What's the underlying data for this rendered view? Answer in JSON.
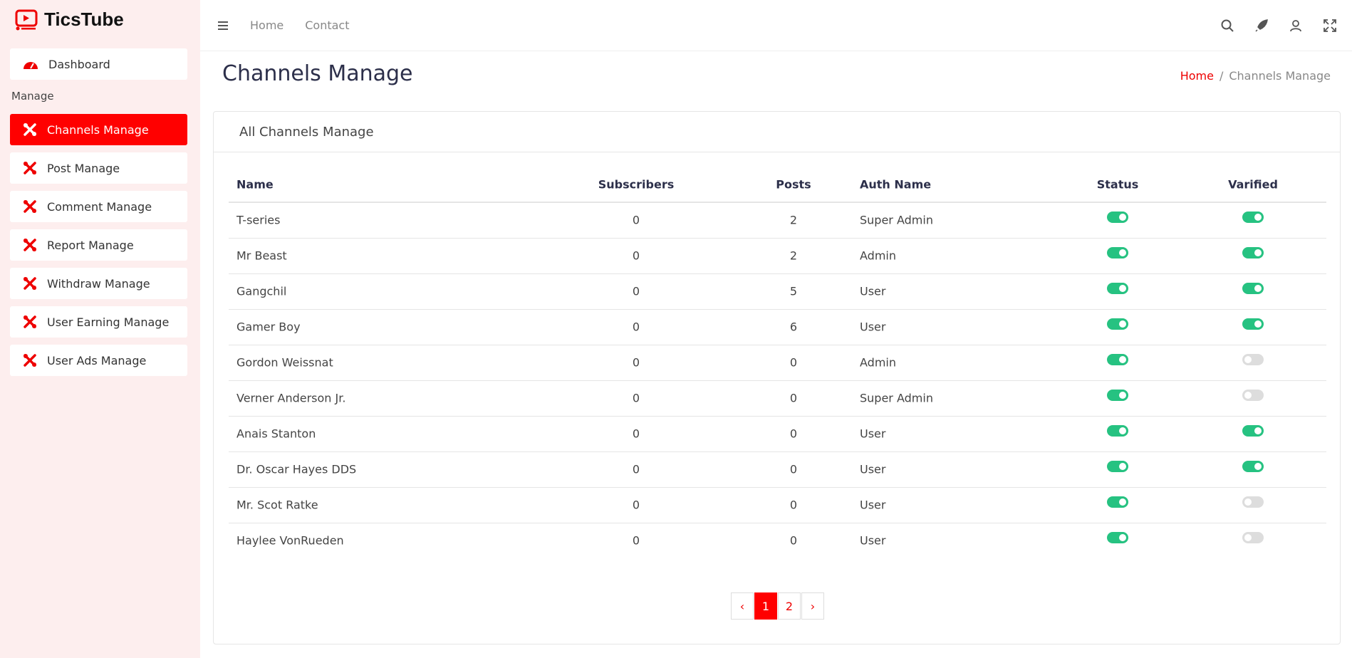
{
  "brand": "TicsTube",
  "sidebar": {
    "dashboard": "Dashboard",
    "section": "Manage",
    "items": [
      "Channels Manage",
      "Post Manage",
      "Comment Manage",
      "Report Manage",
      "Withdraw Manage",
      "User Earning Manage",
      "User Ads Manage"
    ],
    "active": 0
  },
  "topnav": [
    "Home",
    "Contact"
  ],
  "page": {
    "title": "Channels Manage",
    "breadcrumb": [
      "Home",
      "Channels Manage"
    ]
  },
  "card": {
    "title": "All Channels Manage"
  },
  "table": {
    "headers": [
      "Name",
      "Subscribers",
      "Posts",
      "Auth Name",
      "Status",
      "Varified"
    ],
    "rows": [
      [
        "T-series",
        0,
        2,
        "Super Admin",
        true,
        true
      ],
      [
        "Mr Beast",
        0,
        2,
        "Admin",
        true,
        true
      ],
      [
        "Gangchil",
        0,
        5,
        "User",
        true,
        true
      ],
      [
        "Gamer Boy",
        0,
        6,
        "User",
        true,
        true
      ],
      [
        "Gordon Weissnat",
        0,
        0,
        "Admin",
        true,
        false
      ],
      [
        "Verner Anderson Jr.",
        0,
        0,
        "Super Admin",
        true,
        false
      ],
      [
        "Anais Stanton",
        0,
        0,
        "User",
        true,
        true
      ],
      [
        "Dr. Oscar Hayes DDS",
        0,
        0,
        "User",
        true,
        true
      ],
      [
        "Mr. Scot Ratke",
        0,
        0,
        "User",
        true,
        false
      ],
      [
        "Haylee VonRueden",
        0,
        0,
        "User",
        true,
        false
      ]
    ]
  },
  "pagination": {
    "items": [
      "‹",
      "1",
      "2",
      "›"
    ],
    "current": 1
  }
}
